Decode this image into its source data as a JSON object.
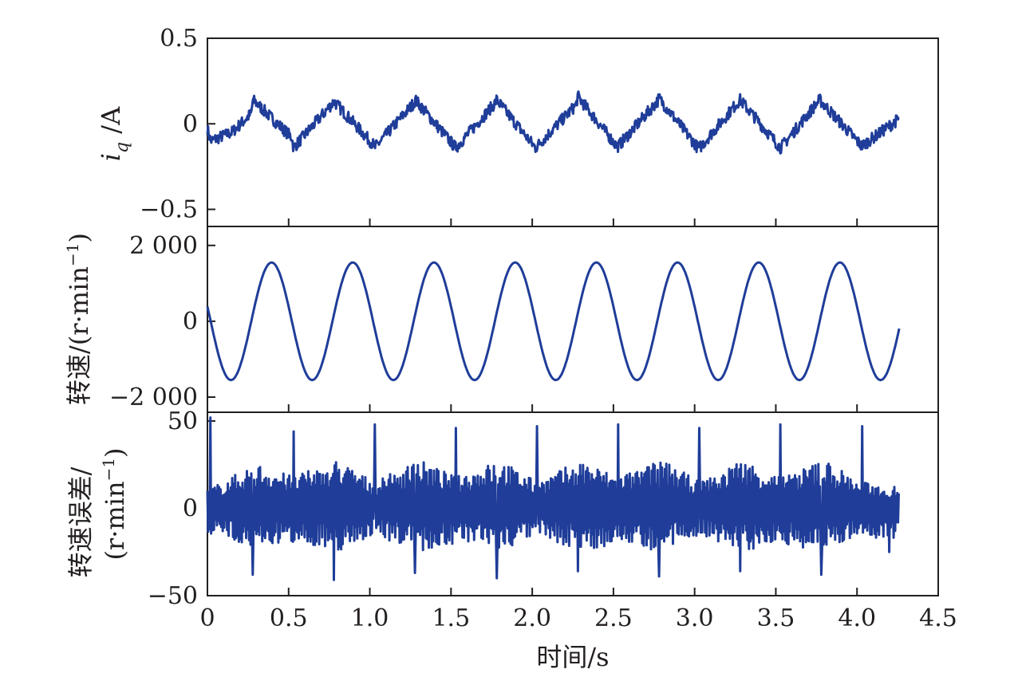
{
  "colors": {
    "series": "#1f3d99",
    "axis": "#231f20"
  },
  "x_axis": {
    "label": "时间/s",
    "range": [
      0,
      4.5
    ],
    "ticks": [
      0,
      0.5,
      1.0,
      1.5,
      2.0,
      2.5,
      3.0,
      3.5,
      4.0,
      4.5
    ],
    "tick_labels": [
      "0",
      "0.5",
      "1.0",
      "1.5",
      "2.0",
      "2.5",
      "3.0",
      "3.5",
      "4.0",
      "4.5"
    ]
  },
  "chart_data": [
    {
      "type": "line",
      "panel": "top",
      "ylabel": {
        "italic": "i",
        "sub": "q",
        "unit": " /A"
      },
      "ylim": [
        -0.6,
        0.5
      ],
      "yticks": [
        0.5,
        0,
        -0.5
      ],
      "ytick_labels": [
        "0.5",
        "0",
        "−0.5"
      ],
      "series": [
        {
          "x": [
            0,
            0.02,
            0.15,
            0.27,
            0.28,
            0.52,
            0.53,
            0.77,
            0.78,
            1.02,
            1.03,
            1.27,
            1.28,
            1.52,
            1.53,
            1.77,
            1.78,
            2.02,
            2.03,
            2.27,
            2.28,
            2.52,
            2.53,
            2.77,
            2.78,
            3.02,
            3.03,
            3.27,
            3.28,
            3.52,
            3.53,
            3.77,
            3.78,
            4.02,
            4.03,
            4.26
          ],
          "y": [
            -0.03,
            -0.1,
            -0.05,
            0.06,
            0.14,
            -0.08,
            -0.14,
            0.12,
            0.13,
            -0.12,
            -0.14,
            0.12,
            0.14,
            -0.13,
            -0.14,
            0.12,
            0.14,
            -0.14,
            -0.13,
            0.11,
            0.16,
            -0.13,
            -0.13,
            0.13,
            0.15,
            -0.14,
            -0.14,
            0.13,
            0.14,
            -0.13,
            -0.14,
            0.14,
            0.13,
            -0.12,
            -0.13,
            0.03
          ]
        }
      ]
    },
    {
      "type": "line",
      "panel": "middle",
      "ylabel": {
        "prefix": "转速/(r·min",
        "sup": "−1",
        "suffix": ")"
      },
      "ylim": [
        -2400,
        2500
      ],
      "yticks": [
        2000,
        0,
        -2000
      ],
      "ytick_labels": [
        "2 000",
        "0",
        "−2 000"
      ],
      "series": [
        {
          "function": "sine",
          "amplitude": 1550,
          "period_s": 0.5,
          "first_peak_s": 0.395,
          "x_range": [
            0,
            4.26
          ]
        }
      ]
    },
    {
      "type": "line",
      "panel": "bottom",
      "ylabel": {
        "line1": "转速误差/",
        "prefix": "(r·min",
        "sup": "−1",
        "suffix": ")"
      },
      "ylim": [
        -50,
        55
      ],
      "yticks": [
        50,
        0,
        -50
      ],
      "ytick_labels": [
        "50",
        "0",
        "−50"
      ],
      "series": [
        {
          "band_x": [
            0.03,
            0.3,
            0.53,
            0.8,
            1.03,
            1.3,
            1.53,
            1.8,
            2.03,
            2.3,
            2.53,
            2.8,
            3.03,
            3.3,
            3.53,
            3.8,
            4.03,
            4.26
          ],
          "band_upper": [
            12,
            26,
            18,
            28,
            15,
            28,
            18,
            28,
            15,
            28,
            18,
            28,
            15,
            28,
            18,
            28,
            15,
            12
          ],
          "band_lower": [
            -15,
            -22,
            -20,
            -25,
            -15,
            -25,
            -20,
            -25,
            -15,
            -25,
            -20,
            -25,
            -15,
            -25,
            -20,
            -25,
            -15,
            -20
          ],
          "spike_x": [
            0.02,
            0.53,
            1.03,
            1.53,
            2.03,
            2.53,
            3.03,
            3.53,
            4.03
          ],
          "spike_y": [
            52,
            44,
            48,
            46,
            47,
            48,
            46,
            48,
            47
          ],
          "dip_x": [
            0.28,
            0.78,
            1.28,
            1.78,
            2.28,
            2.78,
            3.28,
            3.78,
            4.2
          ],
          "dip_y": [
            -38,
            -41,
            -37,
            -40,
            -36,
            -39,
            -36,
            -38,
            -25
          ]
        }
      ]
    }
  ]
}
